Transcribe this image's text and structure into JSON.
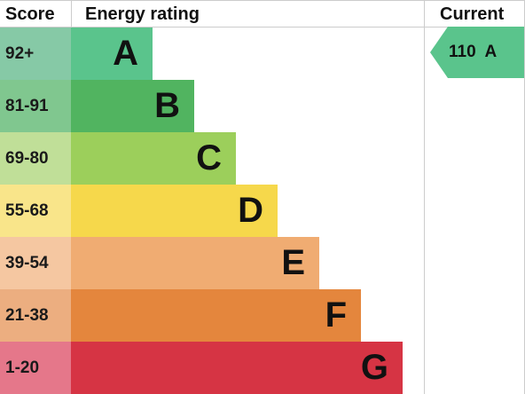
{
  "headers": {
    "score": "Score",
    "energy_rating": "Energy rating",
    "current": "Current"
  },
  "chart_data": {
    "type": "bar",
    "bands": [
      {
        "letter": "A",
        "score_range": "92+",
        "color": "#5ac48c",
        "score_bg": "#86c9a6"
      },
      {
        "letter": "B",
        "score_range": "81-91",
        "color": "#51b460",
        "score_bg": "#80c78f"
      },
      {
        "letter": "C",
        "score_range": "69-80",
        "color": "#9ccf5b",
        "score_bg": "#c0df98"
      },
      {
        "letter": "D",
        "score_range": "55-68",
        "color": "#f6d84b",
        "score_bg": "#f9e58a"
      },
      {
        "letter": "E",
        "score_range": "39-54",
        "color": "#f0ac72",
        "score_bg": "#f5c7a1"
      },
      {
        "letter": "F",
        "score_range": "21-38",
        "color": "#e4863d",
        "score_bg": "#ecae80"
      },
      {
        "letter": "G",
        "score_range": "1-20",
        "color": "#d63444",
        "score_bg": "#e5778a"
      }
    ],
    "current": {
      "score": "110",
      "band": "A",
      "label": "110  A",
      "color": "#5ac48c"
    }
  }
}
